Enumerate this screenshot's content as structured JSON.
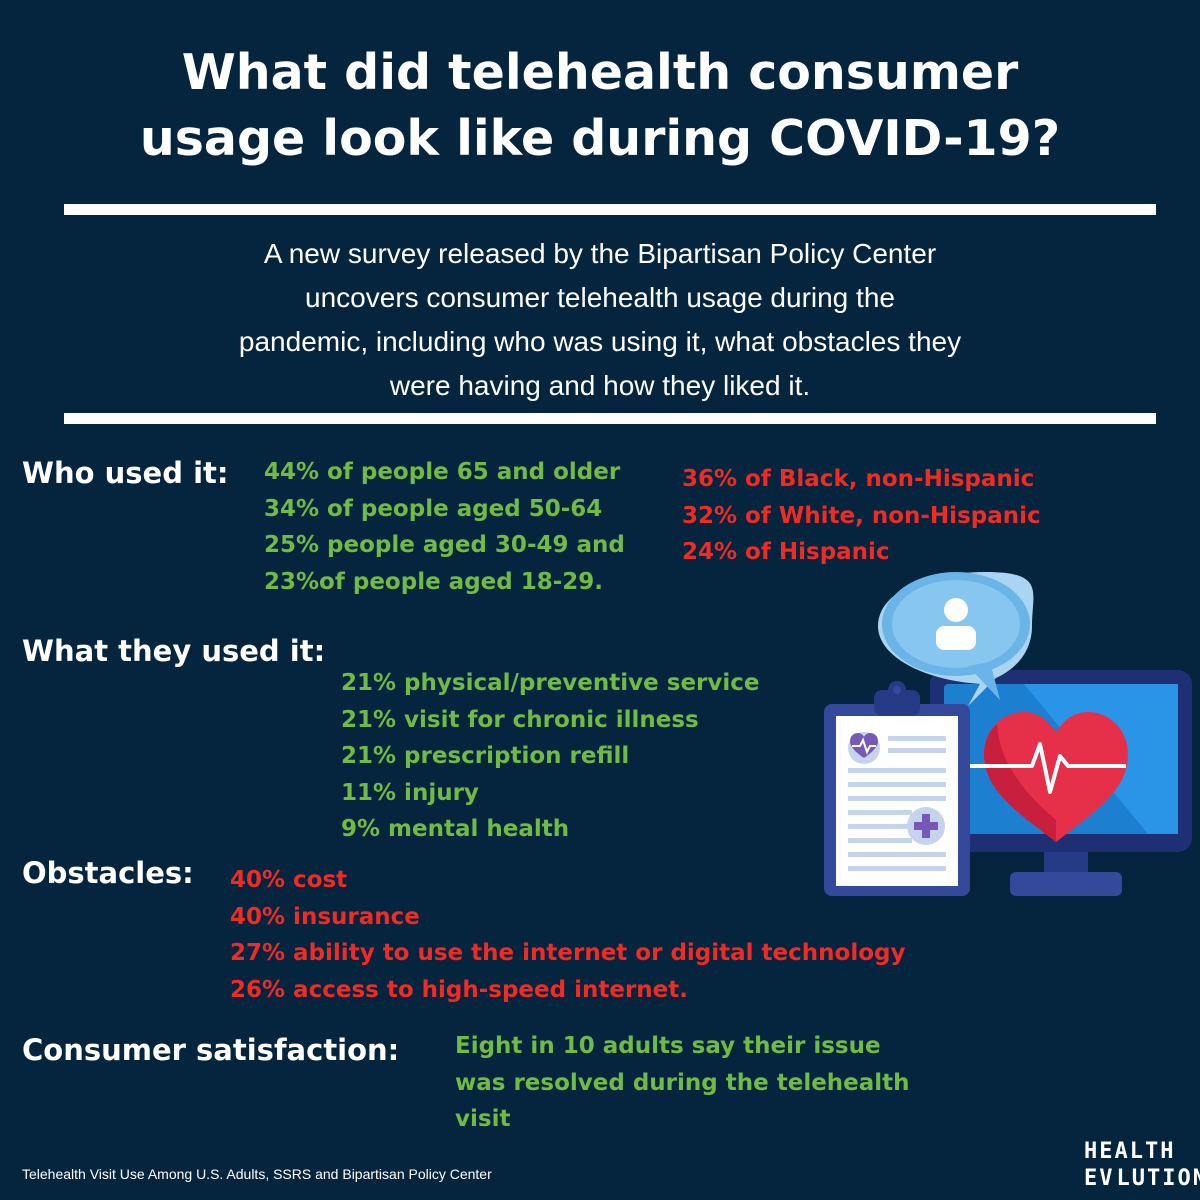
{
  "title": {
    "line1": "What did telehealth consumer",
    "line2": "usage look like during COVID-19?"
  },
  "intro": {
    "line1": "A new survey released by the Bipartisan Policy Center",
    "line2": "uncovers consumer telehealth usage during the",
    "line3": "pandemic, including who was using it, what obstacles they",
    "line4": "were having and how they liked it."
  },
  "who": {
    "label": "Who used it:",
    "age_items": [
      "44% of people 65 and older",
      "34% of people aged 50-64",
      "25% people aged 30-49 and",
      "23%of people aged 18-29."
    ],
    "race_items": [
      "36% of Black, non-Hispanic",
      "32% of White, non-Hispanic",
      "24% of Hispanic"
    ]
  },
  "what": {
    "label": "What they used it:",
    "items": [
      "21% physical/preventive service",
      "21% visit for chronic illness",
      "21% prescription refill",
      "11% injury",
      "9% mental health"
    ]
  },
  "obstacles": {
    "label": "Obstacles:",
    "items": [
      "40% cost",
      "40% insurance",
      "27% ability to use the internet or digital technology",
      "26% access to high-speed internet."
    ]
  },
  "satisfaction": {
    "label": "Consumer satisfaction:",
    "lines": [
      "Eight in 10 adults say their issue",
      "was resolved during the telehealth",
      "visit"
    ]
  },
  "source": "Telehealth Visit Use Among U.S. Adults, SSRS and Bipartisan Policy Center",
  "logo": {
    "line1": "HEALTH",
    "line2_left": "EV",
    "line2_right": "LUTION"
  },
  "colors": {
    "background": "#05253f",
    "green": "#6fbb45",
    "red": "#ef2b24",
    "white": "#ffffff"
  },
  "icons": [
    "clipboard-icon",
    "heart-icon",
    "monitor-icon",
    "chat-bubble-icon",
    "user-icon",
    "medical-cross-icon"
  ]
}
